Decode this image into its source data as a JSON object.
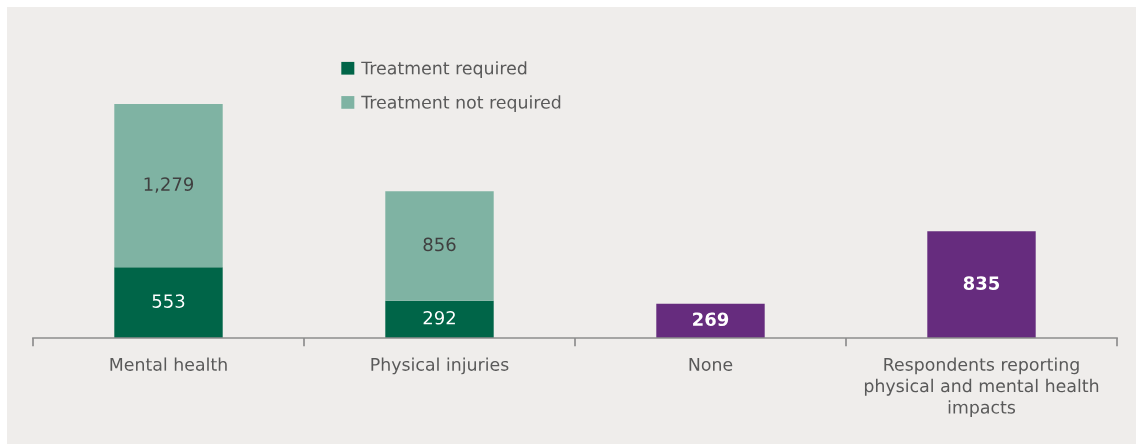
{
  "chart_data": {
    "type": "bar",
    "stacked": true,
    "legend": "top",
    "grid": false,
    "categories": [
      "Mental health",
      "Physical injuries",
      "None",
      "Respondents reporting physical and mental health impacts"
    ],
    "series": [
      {
        "name": "Treatment required",
        "color": "#006548",
        "values": [
          553,
          292,
          null,
          null
        ],
        "value_labels": [
          "553",
          "292",
          null,
          null
        ]
      },
      {
        "name": "Treatment not required",
        "color": "#7fb3a3",
        "values": [
          1279,
          856,
          null,
          null
        ],
        "value_labels": [
          "1,279",
          "856",
          null,
          null
        ]
      },
      {
        "color": "#662c7e",
        "values": [
          null,
          null,
          269,
          835
        ],
        "value_labels": [
          null,
          null,
          "269",
          "835"
        ]
      }
    ]
  }
}
